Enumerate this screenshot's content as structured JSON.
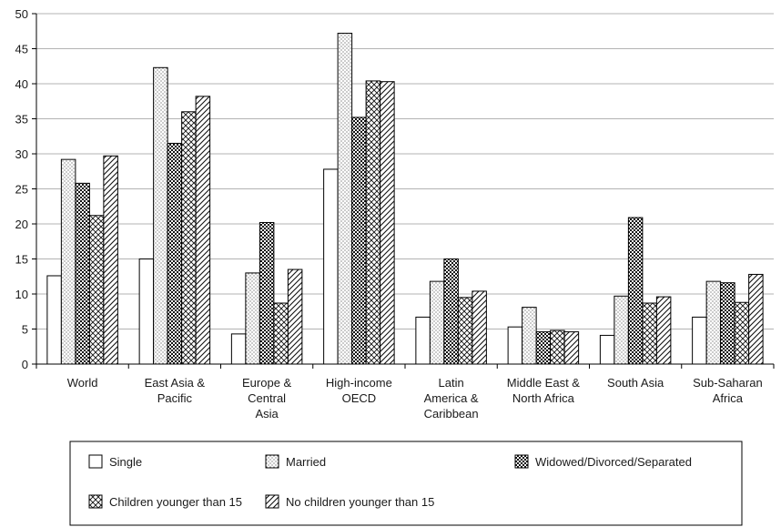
{
  "chart_data": {
    "type": "bar",
    "categories": [
      [
        "World"
      ],
      [
        "East Asia &",
        "Pacific"
      ],
      [
        "Europe &",
        "Central",
        "Asia"
      ],
      [
        "High-income",
        "OECD"
      ],
      [
        "Latin",
        "America &",
        "Caribbean"
      ],
      [
        "Middle East &",
        "North Africa"
      ],
      [
        "South Asia"
      ],
      [
        "Sub-Saharan",
        "Africa"
      ]
    ],
    "series": [
      {
        "name": "Single",
        "pattern": "blank",
        "values": [
          12.6,
          15.0,
          4.3,
          27.8,
          6.7,
          5.3,
          4.1,
          6.7
        ]
      },
      {
        "name": "Married",
        "pattern": "dots",
        "values": [
          29.2,
          42.3,
          13.0,
          47.2,
          11.8,
          8.1,
          9.7,
          11.8
        ]
      },
      {
        "name": "Widowed/Divorced/Separated",
        "pattern": "checks",
        "values": [
          25.8,
          31.5,
          20.2,
          35.2,
          15.0,
          4.6,
          20.9,
          11.6
        ]
      },
      {
        "name": "Children younger than 15",
        "pattern": "crosshatch",
        "values": [
          21.2,
          36.0,
          8.7,
          40.4,
          9.5,
          4.8,
          8.7,
          8.8
        ]
      },
      {
        "name": "No children younger than 15",
        "pattern": "diagonal",
        "values": [
          29.7,
          38.2,
          13.5,
          40.3,
          10.4,
          4.6,
          9.6,
          12.8
        ]
      }
    ],
    "ylim": [
      0,
      50
    ],
    "yticks": [
      0,
      5,
      10,
      15,
      20,
      25,
      30,
      35,
      40,
      45,
      50
    ],
    "grid": true,
    "legend_position": "bottom"
  }
}
